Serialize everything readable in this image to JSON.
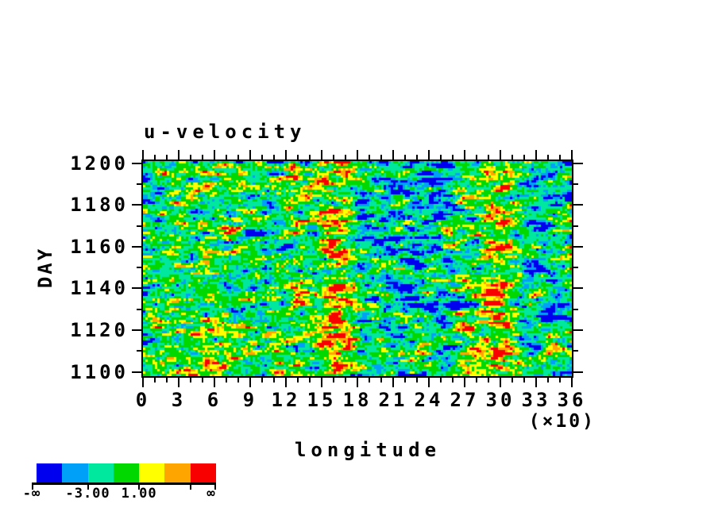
{
  "chart_data": {
    "type": "heatmap",
    "title": "u-velocity",
    "xlabel": "longitude",
    "xlabel_multiplier": "(×10)",
    "ylabel": "DAY",
    "x_axis": {
      "min": 0,
      "max": 360,
      "major_tick_values": [
        0,
        30,
        60,
        90,
        120,
        150,
        180,
        210,
        240,
        270,
        300,
        330,
        360
      ],
      "major_tick_labels": [
        "0",
        "3",
        "6",
        "9",
        "12",
        "15",
        "18",
        "21",
        "24",
        "27",
        "30",
        "33",
        "36"
      ],
      "minor_tick_step": 10,
      "label_unit_divisor": 10
    },
    "y_axis": {
      "min": 1098,
      "max": 1201,
      "major_tick_values": [
        1200,
        1180,
        1160,
        1140,
        1120,
        1100
      ],
      "major_tick_labels": [
        "1200",
        "1180",
        "1160",
        "1140",
        "1120",
        "1100"
      ],
      "minor_tick_values": [
        1190,
        1170,
        1150,
        1130,
        1110
      ]
    },
    "colorbar": {
      "colors": [
        "#0000ee",
        "#00a0f8",
        "#00e79e",
        "#00d800",
        "#ffff00",
        "#ffa500",
        "#f80000"
      ],
      "boundary_labels": [
        {
          "boundary": 0,
          "label": "-∞"
        },
        {
          "boundary": 2,
          "label": "-3.00"
        },
        {
          "boundary": 4,
          "label": "1.00"
        },
        {
          "boundary": 7,
          "label": "∞"
        }
      ],
      "tick_boundaries": [
        2,
        4,
        6
      ]
    },
    "field_description": "noisy Hovmöller field of u-velocity vs longitude (0-360) and day (1100-1200); mostly green/teal background with yellow streaks, persistent red bands near longitude 160-175 and 295-305, blue bands near longitude 200-250 and 315-335",
    "texture": {
      "seed": 1337,
      "cols": 180,
      "rows": 91,
      "thresholds": [
        -1.7,
        -1.05,
        -0.15,
        0.8,
        1.42,
        1.92
      ],
      "fine_gain": 2.6,
      "coarse_gain": 1.2,
      "bands": [
        {
          "lon": 163,
          "sig_lon": 11,
          "day": 1150,
          "sig_day": 130,
          "amp": 1.35
        },
        {
          "lon": 300,
          "sig_lon": 11,
          "day": 1133,
          "sig_day": 50,
          "amp": 1.2
        },
        {
          "lon": 297,
          "sig_lon": 9,
          "day": 1186,
          "sig_day": 15,
          "amp": 0.75
        },
        {
          "lon": 225,
          "sig_lon": 28,
          "day": 1158,
          "sig_day": 40,
          "amp": -0.95
        },
        {
          "lon": 330,
          "sig_lon": 13,
          "day": 1155,
          "sig_day": 60,
          "amp": -1.1
        },
        {
          "lon": 193,
          "sig_lon": 11,
          "day": 1184,
          "sig_day": 16,
          "amp": -0.65
        },
        {
          "lon": 40,
          "sig_lon": 30,
          "day": 1101,
          "sig_day": 6,
          "amp": 0.6
        },
        {
          "lon": 118,
          "sig_lon": 18,
          "day": 1199,
          "sig_day": 6,
          "amp": 0.55
        }
      ]
    }
  }
}
